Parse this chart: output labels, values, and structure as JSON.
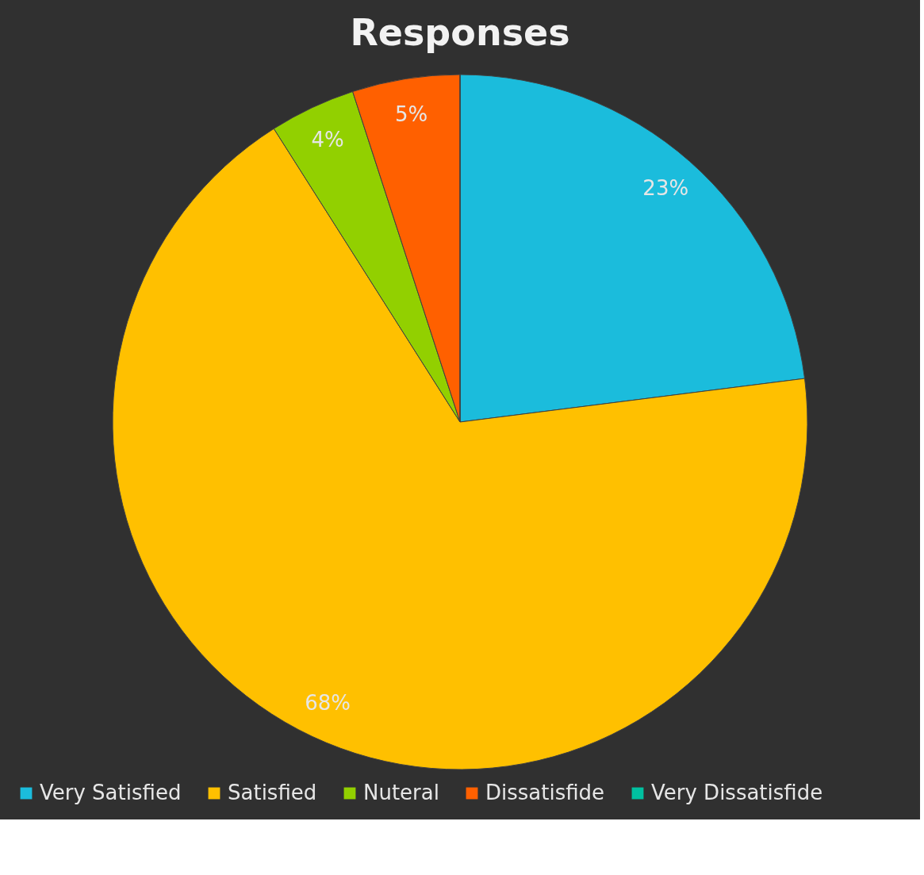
{
  "chart_data": {
    "type": "pie",
    "title": "Responses",
    "categories": [
      "Very Satisfied",
      "Satisfied",
      "Nuteral",
      "Dissatisfide",
      "Very Dissatisfide"
    ],
    "values": [
      23,
      68,
      4,
      5,
      0
    ],
    "colors": [
      "#1bbcdc",
      "#ffc000",
      "#92d000",
      "#ff6000",
      "#00c0a0"
    ],
    "value_labels": [
      "23%",
      "68%",
      "4%",
      "5%",
      null
    ],
    "legend": "bottom"
  }
}
